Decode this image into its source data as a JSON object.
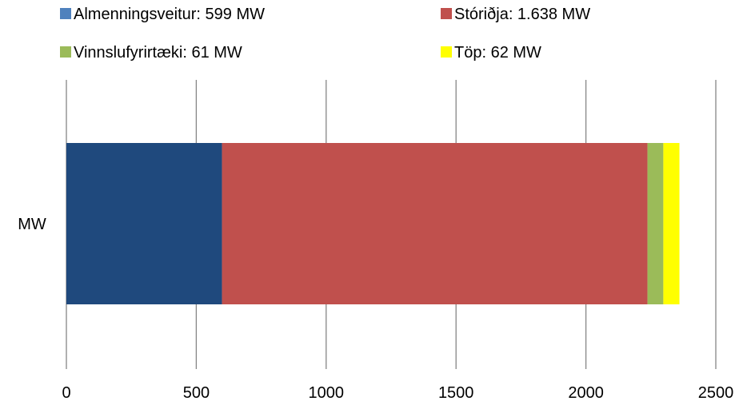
{
  "chart_data": {
    "type": "bar",
    "orientation": "horizontal",
    "stacked": true,
    "categories": [
      "MW"
    ],
    "series": [
      {
        "name": "Almenningsveitur: 599 MW",
        "values": [
          599
        ],
        "color": "#1F497D",
        "legend_color": "#4F81BD"
      },
      {
        "name": "Stóriðja: 1.638 MW",
        "values": [
          1638
        ],
        "color": "#C0504D",
        "legend_color": "#C0504D"
      },
      {
        "name": "Vinnslufyrirtæki: 61 MW",
        "values": [
          61
        ],
        "color": "#9BBB59",
        "legend_color": "#9BBB59"
      },
      {
        "name": "Töp: 62 MW",
        "values": [
          62
        ],
        "color": "#FFFF00",
        "legend_color": "#FFFF00"
      }
    ],
    "xlim": [
      0,
      2500
    ],
    "xticks": [
      "0",
      "500",
      "1000",
      "1500",
      "2000",
      "2500"
    ],
    "xtick_values": [
      0,
      500,
      1000,
      1500,
      2000,
      2500
    ],
    "grid": true,
    "gridline_color": "#868686",
    "legend_position": "top"
  }
}
